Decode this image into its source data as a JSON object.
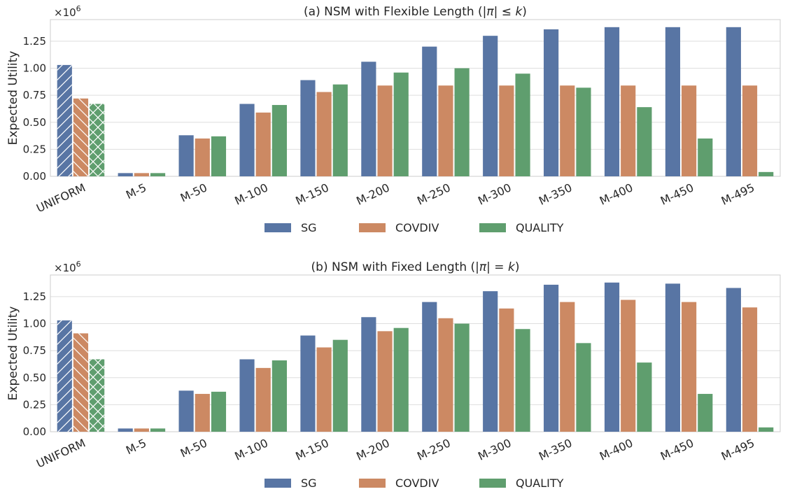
{
  "colors": {
    "SG": "#5875a4",
    "COVDIV": "#cc8963",
    "QUALITY": "#5f9e6e",
    "grid": "#dedede",
    "axis": "#cccccc",
    "text": "#262626"
  },
  "chart_data": [
    {
      "type": "bar",
      "title": "(a) NSM with Flexible Length (|π| ≤ k)",
      "title_parts": {
        "prefix": "(a) NSM with Flexible Length (|",
        "pi": "π",
        "mid": "| ≤ ",
        "k": "k",
        "suffix": ")"
      },
      "xlabel": "",
      "ylabel": "Expected Utility",
      "scale_label": "×10",
      "scale_exponent": "6",
      "ylim": [
        0,
        1.45
      ],
      "yticks": [
        "0.00",
        "0.25",
        "0.50",
        "0.75",
        "1.00",
        "1.25"
      ],
      "grid": true,
      "legend_position": "bottom-center",
      "hatched_categories": [
        "UNIFORM"
      ],
      "categories": [
        "UNIFORM",
        "M-5",
        "M-50",
        "M-100",
        "M-150",
        "M-200",
        "M-250",
        "M-300",
        "M-350",
        "M-400",
        "M-450",
        "M-495"
      ],
      "series": [
        {
          "name": "SG",
          "values": [
            1.03,
            0.03,
            0.38,
            0.67,
            0.89,
            1.06,
            1.2,
            1.3,
            1.36,
            1.38,
            1.38,
            1.38
          ]
        },
        {
          "name": "COVDIV",
          "values": [
            0.72,
            0.03,
            0.35,
            0.59,
            0.78,
            0.84,
            0.84,
            0.84,
            0.84,
            0.84,
            0.84,
            0.84
          ]
        },
        {
          "name": "QUALITY",
          "values": [
            0.67,
            0.03,
            0.37,
            0.66,
            0.85,
            0.96,
            1.0,
            0.95,
            0.82,
            0.64,
            0.35,
            0.04
          ]
        }
      ]
    },
    {
      "type": "bar",
      "title": "(b) NSM with Fixed Length (|π| = k)",
      "title_parts": {
        "prefix": "(b) NSM with Fixed Length (|",
        "pi": "π",
        "mid": "| = ",
        "k": "k",
        "suffix": ")"
      },
      "xlabel": "",
      "ylabel": "Expected Utility",
      "scale_label": "×10",
      "scale_exponent": "6",
      "ylim": [
        0,
        1.45
      ],
      "yticks": [
        "0.00",
        "0.25",
        "0.50",
        "0.75",
        "1.00",
        "1.25"
      ],
      "grid": true,
      "legend_position": "bottom-center",
      "hatched_categories": [
        "UNIFORM"
      ],
      "categories": [
        "UNIFORM",
        "M-5",
        "M-50",
        "M-100",
        "M-150",
        "M-200",
        "M-250",
        "M-300",
        "M-350",
        "M-400",
        "M-450",
        "M-495"
      ],
      "series": [
        {
          "name": "SG",
          "values": [
            1.03,
            0.03,
            0.38,
            0.67,
            0.89,
            1.06,
            1.2,
            1.3,
            1.36,
            1.38,
            1.37,
            1.33
          ]
        },
        {
          "name": "COVDIV",
          "values": [
            0.91,
            0.03,
            0.35,
            0.59,
            0.78,
            0.93,
            1.05,
            1.14,
            1.2,
            1.22,
            1.2,
            1.15
          ]
        },
        {
          "name": "QUALITY",
          "values": [
            0.67,
            0.03,
            0.37,
            0.66,
            0.85,
            0.96,
            1.0,
            0.95,
            0.82,
            0.64,
            0.35,
            0.04
          ]
        }
      ]
    }
  ]
}
